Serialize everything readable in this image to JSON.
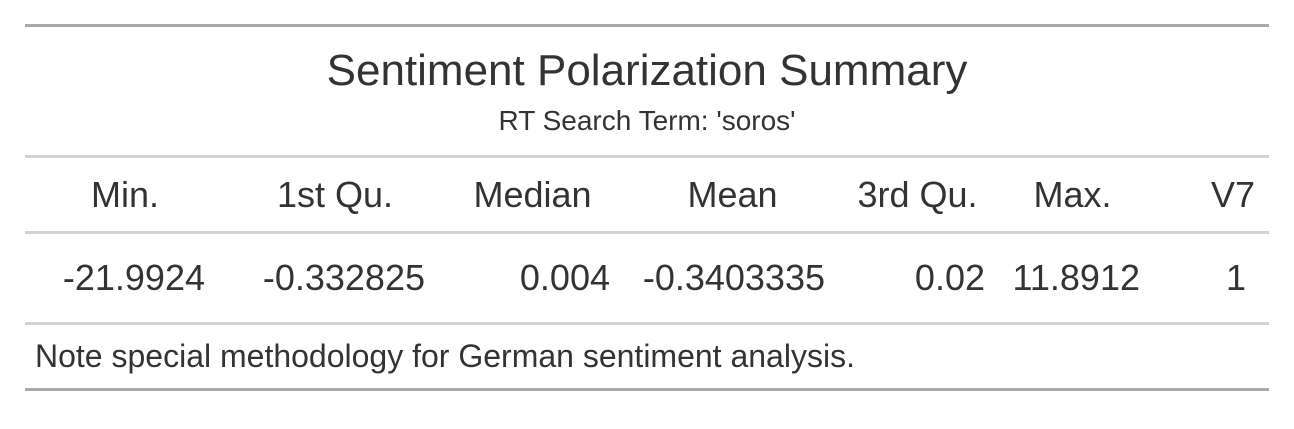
{
  "table": {
    "title": "Sentiment Polarization Summary",
    "subtitle": "RT Search Term: 'soros'",
    "columns": [
      "Min.",
      "1st Qu.",
      "Median",
      "Mean",
      "3rd Qu.",
      "Max.",
      "V7"
    ],
    "rows": [
      [
        "-21.9924",
        "-0.332825",
        "0.004",
        "-0.3403335",
        "0.02",
        "11.8912",
        "1"
      ]
    ],
    "footnote": "Note special methodology for German sentiment analysis."
  }
}
